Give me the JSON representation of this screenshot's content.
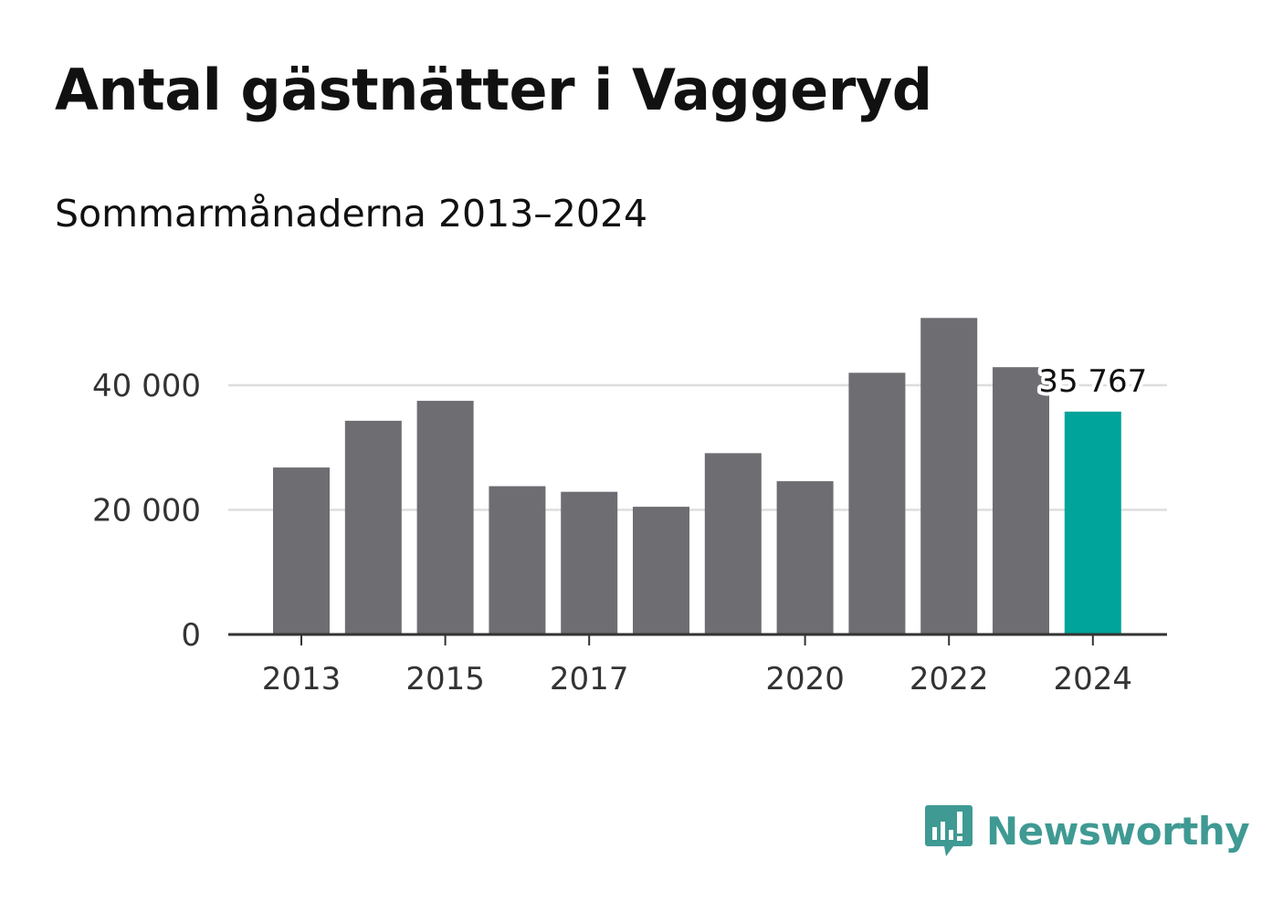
{
  "title": "Antal gästnätter i Vaggeryd",
  "subtitle": "Sommarmånaderna 2013–2024",
  "brand": {
    "name": "Newsworthy",
    "color": "#3f9a93",
    "icon": "newsworthy-logo-icon"
  },
  "colors": {
    "bar": "#6e6d72",
    "highlight": "#00a49a",
    "grid": "#dddddd",
    "axis": "#333333"
  },
  "chart_data": {
    "type": "bar",
    "x": [
      2013,
      2014,
      2015,
      2016,
      2017,
      2018,
      2019,
      2020,
      2021,
      2022,
      2023,
      2024
    ],
    "values": [
      26800,
      34300,
      37500,
      23800,
      22900,
      20500,
      29100,
      24600,
      42000,
      50800,
      42900,
      35767
    ],
    "highlight_index": 11,
    "value_label": "35 767",
    "x_tick_labels": [
      "2013",
      "2015",
      "2017",
      "2020",
      "2022",
      "2024"
    ],
    "x_tick_values": [
      2013,
      2015,
      2017,
      2020,
      2022,
      2024
    ],
    "y_tick_values": [
      0,
      20000,
      40000
    ],
    "y_tick_labels": [
      "0",
      "20 000",
      "40 000"
    ],
    "ylim": [
      0,
      52000
    ],
    "grid": true
  }
}
